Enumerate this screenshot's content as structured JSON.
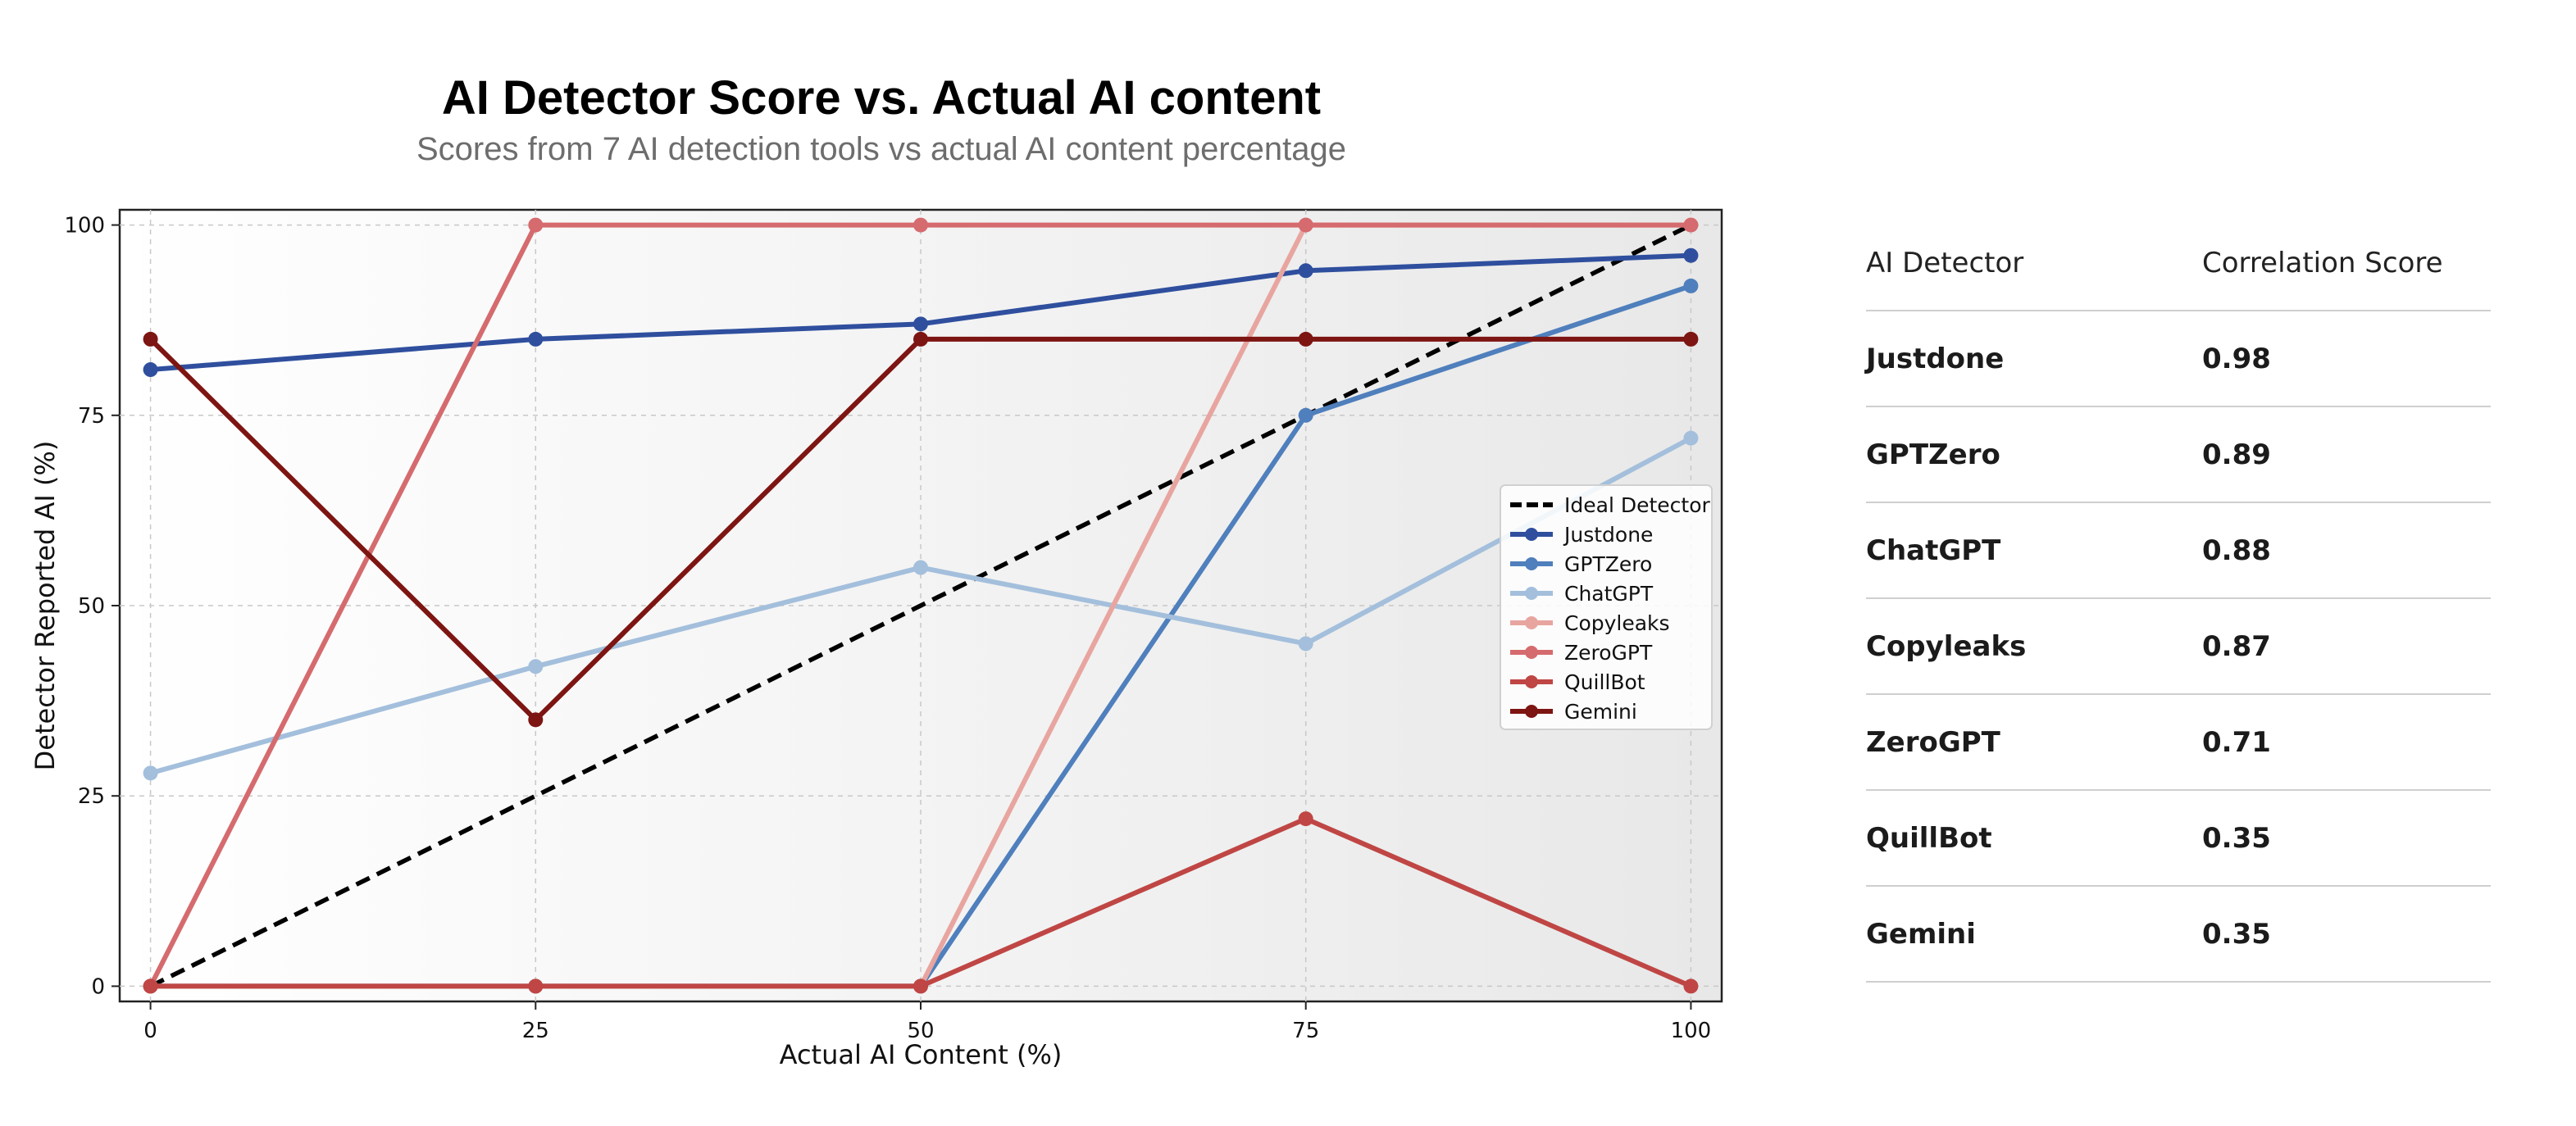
{
  "chart_data": {
    "type": "line",
    "title": "AI Detector Score vs. Actual AI content",
    "subtitle": "Scores from 7 AI detection tools vs actual AI content percentage",
    "xlabel": "Actual AI Content (%)",
    "ylabel": "Detector Reported AI (%)",
    "x": [
      0,
      25,
      50,
      75,
      100
    ],
    "xlim": [
      -2,
      102
    ],
    "ylim": [
      -2,
      102
    ],
    "xticks": [
      0,
      25,
      50,
      75,
      100
    ],
    "yticks": [
      0,
      25,
      50,
      75,
      100
    ],
    "grid": true,
    "legend_position": "center-right",
    "series": [
      {
        "name": "Ideal Detector",
        "values": [
          0,
          25,
          50,
          75,
          100
        ],
        "color": "#000000",
        "style": "dashed"
      },
      {
        "name": "Justdone",
        "values": [
          81,
          85,
          87,
          94,
          96
        ],
        "color": "#2f4f9e",
        "style": "solid"
      },
      {
        "name": "GPTZero",
        "values": [
          0,
          0,
          0,
          75,
          92
        ],
        "color": "#4f7fbc",
        "style": "solid"
      },
      {
        "name": "ChatGPT",
        "values": [
          28,
          42,
          55,
          45,
          72
        ],
        "color": "#a3bfdc",
        "style": "solid"
      },
      {
        "name": "Copyleaks",
        "values": [
          0,
          0,
          0,
          100,
          100
        ],
        "color": "#e8a5a0",
        "style": "solid"
      },
      {
        "name": "ZeroGPT",
        "values": [
          0,
          100,
          100,
          100,
          100
        ],
        "color": "#d56b6e",
        "style": "solid"
      },
      {
        "name": "QuillBot",
        "values": [
          0,
          0,
          0,
          22,
          0
        ],
        "color": "#bf4644",
        "style": "solid"
      },
      {
        "name": "Gemini",
        "values": [
          85,
          35,
          85,
          85,
          85
        ],
        "color": "#7d1512",
        "style": "solid"
      }
    ]
  },
  "table": {
    "header_detector": "AI Detector",
    "header_score": "Correlation Score",
    "rows": [
      {
        "name": "Justdone",
        "score": "0.98"
      },
      {
        "name": "GPTZero",
        "score": "0.89"
      },
      {
        "name": "ChatGPT",
        "score": "0.88"
      },
      {
        "name": "Copyleaks",
        "score": "0.87"
      },
      {
        "name": "ZeroGPT",
        "score": "0.71"
      },
      {
        "name": "QuillBot",
        "score": "0.35"
      },
      {
        "name": "Gemini",
        "score": "0.35"
      }
    ]
  }
}
